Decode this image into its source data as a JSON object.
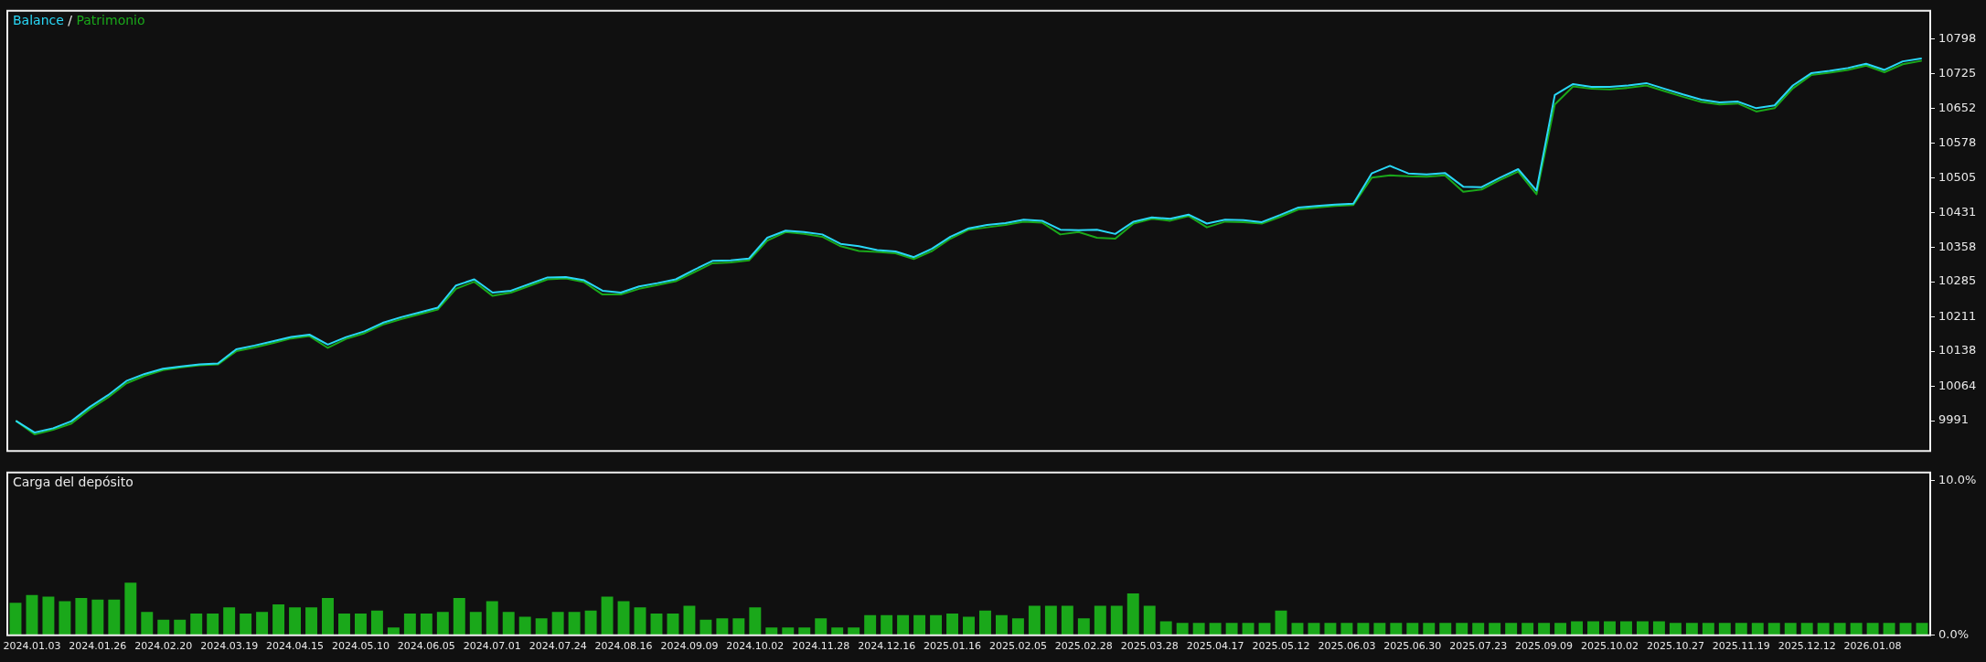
{
  "chart_data": [
    {
      "type": "line",
      "legend": "top left",
      "annotations": [
        "/"
      ],
      "marker": "none",
      "tick_labels": "y",
      "grid": false,
      "categories": [
        null,
        null,
        null,
        null,
        null,
        null,
        null,
        null,
        null,
        null,
        null,
        null,
        null,
        null,
        null,
        null,
        null,
        null,
        null,
        null,
        null,
        null,
        null,
        null,
        null,
        null,
        null,
        null,
        null,
        null,
        null,
        null,
        null,
        null,
        null,
        null,
        null,
        null,
        null,
        null,
        null,
        null,
        null,
        null,
        null,
        null,
        null,
        null,
        null,
        null,
        null,
        null,
        null,
        null,
        null,
        null,
        null,
        null,
        null,
        null,
        null,
        null,
        null,
        null,
        null,
        null,
        null,
        null,
        null,
        null,
        null,
        null,
        null,
        null,
        null,
        null,
        null,
        null,
        null,
        null,
        null,
        null,
        null,
        null,
        null,
        null,
        null,
        null,
        null,
        null,
        null,
        null,
        null,
        null,
        null,
        null,
        null,
        null,
        null,
        null,
        null,
        null,
        null,
        null,
        null
      ],
      "ylim": [
        9927,
        10858
      ],
      "yticks": [
        9991,
        10064,
        10138,
        10211,
        10285,
        10358,
        10431,
        10505,
        10578,
        10652,
        10725,
        10798
      ],
      "series": [
        {
          "name": "Balance",
          "color": "#29d8f8",
          "values": [
            9990,
            9966,
            9975,
            9990,
            10020,
            10045,
            10075,
            10090,
            10101,
            10106,
            10110,
            10112,
            10142,
            10150,
            10159,
            10168,
            10173,
            10152,
            10168,
            10180,
            10198,
            10210,
            10220,
            10230,
            10277,
            10290,
            10262,
            10266,
            10280,
            10294,
            10295,
            10288,
            10266,
            10262,
            10275,
            10282,
            10290,
            10310,
            10329,
            10330,
            10334,
            10378,
            10393,
            10390,
            10385,
            10365,
            10360,
            10352,
            10349,
            10337,
            10355,
            10380,
            10398,
            10405,
            10409,
            10416,
            10414,
            10395,
            10394,
            10395,
            10386,
            10412,
            10421,
            10418,
            10427,
            10408,
            10416,
            10415,
            10411,
            10426,
            10442,
            10445,
            10448,
            10450,
            10514,
            10530,
            10514,
            10512,
            10515,
            10486,
            10485,
            10505,
            10523,
            10478,
            10680,
            10703,
            10697,
            10697,
            10700,
            10705,
            10693,
            10681,
            10670,
            10664,
            10666,
            10652,
            10658,
            10700,
            10726,
            10731,
            10737,
            10746,
            10733,
            10751,
            10757
          ]
        },
        {
          "name": "Patrimonio",
          "color": "#1aa81a",
          "values": [
            9990,
            9962,
            9972,
            9985,
            10015,
            10040,
            10070,
            10086,
            10098,
            10104,
            10108,
            10110,
            10138,
            10146,
            10155,
            10165,
            10170,
            10145,
            10164,
            10176,
            10194,
            10206,
            10216,
            10226,
            10270,
            10285,
            10255,
            10262,
            10276,
            10290,
            10292,
            10284,
            10258,
            10258,
            10270,
            10278,
            10286,
            10305,
            10324,
            10326,
            10330,
            10372,
            10390,
            10386,
            10380,
            10360,
            10350,
            10348,
            10345,
            10333,
            10350,
            10376,
            10395,
            10400,
            10405,
            10412,
            10410,
            10385,
            10390,
            10378,
            10376,
            10408,
            10418,
            10414,
            10424,
            10400,
            10412,
            10411,
            10408,
            10422,
            10438,
            10442,
            10445,
            10447,
            10505,
            10510,
            10508,
            10507,
            10510,
            10475,
            10480,
            10500,
            10518,
            10470,
            10660,
            10698,
            10693,
            10692,
            10695,
            10700,
            10688,
            10676,
            10665,
            10660,
            10662,
            10645,
            10652,
            10694,
            10722,
            10727,
            10733,
            10742,
            10728,
            10745,
            10752
          ]
        }
      ]
    },
    {
      "type": "bar",
      "title": "Carga del depósito",
      "grid": false,
      "color": "#1aa81a",
      "categories": [
        null,
        "2024.01.03",
        null,
        null,
        null,
        "2024.01.26",
        null,
        null,
        null,
        "2024.02.20",
        null,
        null,
        null,
        "2024.03.19",
        null,
        null,
        null,
        "2024.04.15",
        null,
        null,
        null,
        "2024.05.10",
        null,
        null,
        null,
        "2024.06.05",
        null,
        null,
        null,
        "2024.07.01",
        null,
        null,
        null,
        "2024.07.24",
        null,
        null,
        null,
        "2024.08.16",
        null,
        null,
        null,
        "2024.09.09",
        null,
        null,
        null,
        "2024.10.02",
        null,
        null,
        null,
        "2024.11.28",
        null,
        null,
        null,
        "2024.12.16",
        null,
        null,
        null,
        "2025.01.16",
        null,
        null,
        null,
        "2025.02.05",
        null,
        null,
        null,
        "2025.02.28",
        null,
        null,
        null,
        "2025.03.28",
        null,
        null,
        null,
        "2025.04.17",
        null,
        null,
        null,
        "2025.05.12",
        null,
        null,
        null,
        "2025.06.03",
        null,
        null,
        null,
        "2025.06.30",
        null,
        null,
        null,
        "2025.07.23",
        null,
        null,
        null,
        "2025.09.09",
        null,
        null,
        null,
        "2025.10.02",
        null,
        null,
        null,
        "2025.10.27",
        null,
        null,
        null,
        "2025.11.19",
        null,
        null,
        null,
        "2025.12.12",
        null,
        null,
        null,
        "2026.01.08",
        null,
        null,
        null
      ],
      "values": [
        2.1,
        2.6,
        2.5,
        2.2,
        2.4,
        2.3,
        2.3,
        3.4,
        1.5,
        1.0,
        1.0,
        1.4,
        1.4,
        1.8,
        1.4,
        1.5,
        2.0,
        1.8,
        1.8,
        2.4,
        1.4,
        1.4,
        1.6,
        0.5,
        1.4,
        1.4,
        1.5,
        2.4,
        1.5,
        2.2,
        1.5,
        1.2,
        1.1,
        1.5,
        1.5,
        1.6,
        2.5,
        2.2,
        1.8,
        1.4,
        1.4,
        1.9,
        1.0,
        1.1,
        1.1,
        1.8,
        0.5,
        0.5,
        0.5,
        1.1,
        0.5,
        0.5,
        1.3,
        1.3,
        1.3,
        1.3,
        1.3,
        1.4,
        1.2,
        1.6,
        1.3,
        1.1,
        1.9,
        1.9,
        1.9,
        1.1,
        1.9,
        1.9,
        2.7,
        1.9,
        0.9,
        0.8,
        0.8,
        0.8,
        0.8,
        0.8,
        0.8,
        1.6,
        0.8,
        0.8,
        0.8,
        0.8,
        0.8,
        0.8,
        0.8,
        0.8,
        0.8,
        0.8,
        0.8,
        0.8,
        0.8,
        0.8,
        0.8,
        0.8,
        0.8,
        0.9,
        0.9,
        0.9,
        0.9,
        0.9,
        0.9,
        0.8,
        0.8,
        0.8,
        0.8,
        0.8,
        0.8,
        0.8,
        0.8,
        0.8,
        0.8,
        0.8,
        0.8,
        0.8,
        0.8,
        0.8,
        0.8
      ],
      "ylim": [
        0,
        10.5
      ],
      "yticks": [
        {
          "value": 0,
          "label": "0.0%"
        },
        {
          "value": 10,
          "label": "10.0%"
        }
      ]
    }
  ]
}
